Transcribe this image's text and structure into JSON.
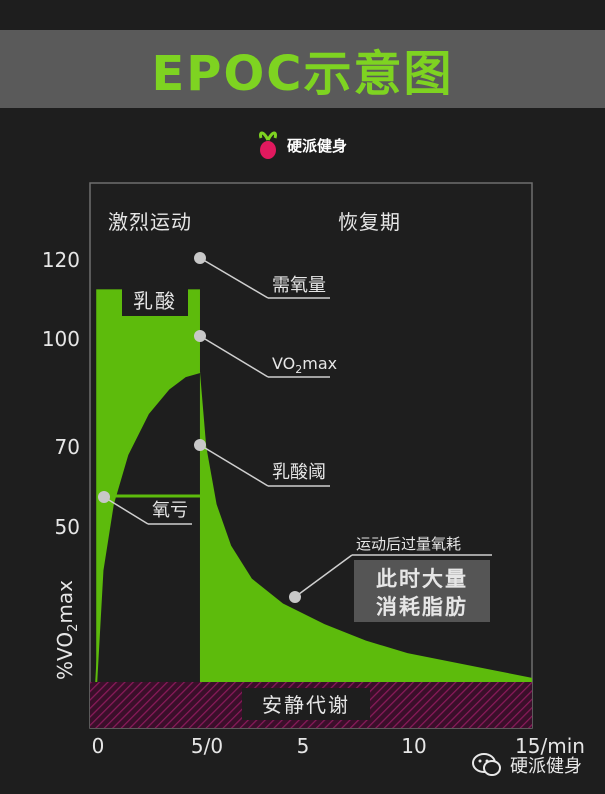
{
  "title": "EPOC示意图",
  "brand": "硬派健身",
  "watermark": "硬派健身",
  "colors": {
    "green": "#5dbb0c",
    "title_green": "#7ed321",
    "background": "#1e1e1e",
    "title_bar": "#5a5a5a",
    "rest_band": "#8a1a5a",
    "marker": "#c8c8c8"
  },
  "icons": {
    "logo": "radish-icon",
    "watermark": "wechat-icon"
  },
  "chart_data": {
    "type": "area",
    "phase_labels": {
      "exercise": "激烈运动",
      "recovery": "恢复期"
    },
    "ylabel": "%VO2max",
    "ylabel_parts": {
      "prefix": "%VO",
      "sub": "2",
      "suffix": "max"
    },
    "yticks": [
      "120",
      "100",
      "70",
      "50"
    ],
    "ytick_values": [
      120,
      100,
      70,
      50
    ],
    "xticks": [
      "0",
      "5/0",
      "5",
      "10",
      "15/min"
    ],
    "xtick_values": [
      0,
      5,
      10,
      15,
      20
    ],
    "ylim": [
      25,
      130
    ],
    "xlim": [
      -0.3,
      21
    ],
    "exercise_end": 5,
    "series": [
      {
        "key": "demand",
        "values": [
          [
            0,
            120
          ],
          [
            5,
            120
          ]
        ]
      },
      {
        "key": "vo2",
        "values": [
          [
            0,
            25
          ],
          [
            0.3,
            52
          ],
          [
            0.8,
            68
          ],
          [
            1.5,
            80
          ],
          [
            2.5,
            90
          ],
          [
            3.5,
            96
          ],
          [
            4.3,
            99
          ],
          [
            5,
            100
          ]
        ]
      },
      {
        "key": "epoc",
        "values": [
          [
            5,
            100
          ],
          [
            5.3,
            82
          ],
          [
            5.8,
            68
          ],
          [
            6.5,
            58
          ],
          [
            7.5,
            50
          ],
          [
            9,
            44
          ],
          [
            11,
            39
          ],
          [
            13,
            35
          ],
          [
            15,
            32
          ],
          [
            17,
            30
          ],
          [
            19,
            28
          ],
          [
            21,
            26
          ]
        ]
      }
    ],
    "lactate_threshold": 70,
    "rest_label": "安静代谢",
    "annotations": {
      "oxygen_demand": "需氧量",
      "vo2max": {
        "prefix": "VO",
        "sub": "2",
        "suffix": "max"
      },
      "lactate_threshold": "乳酸阈",
      "oxygen_deficit": "氧亏",
      "lactic_acid": "乳酸",
      "epoc": "运动后过量氧耗",
      "fat_line1": "此时大量",
      "fat_line2": "消耗脂肪"
    }
  }
}
